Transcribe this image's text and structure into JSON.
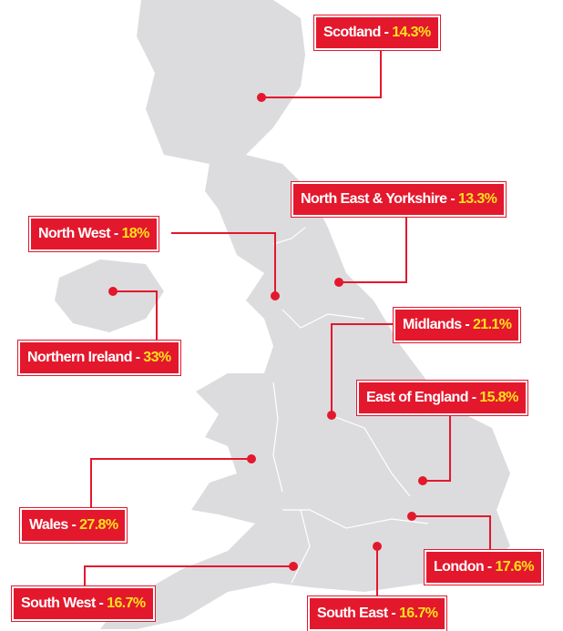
{
  "regions": [
    {
      "label": "Scotland -",
      "value": "14.3%"
    },
    {
      "label": "North East & Yorkshire -",
      "value": "13.3%"
    },
    {
      "label": "North West -",
      "value": "18%"
    },
    {
      "label": "Northern Ireland -",
      "value": "33%"
    },
    {
      "label": "Midlands -",
      "value": "21.1%"
    },
    {
      "label": "East of England -",
      "value": "15.8%"
    },
    {
      "label": "Wales -",
      "value": "27.8%"
    },
    {
      "label": "London -",
      "value": "17.6%"
    },
    {
      "label": "South West -",
      "value": "16.7%"
    },
    {
      "label": "South East -",
      "value": "16.7%"
    }
  ]
}
